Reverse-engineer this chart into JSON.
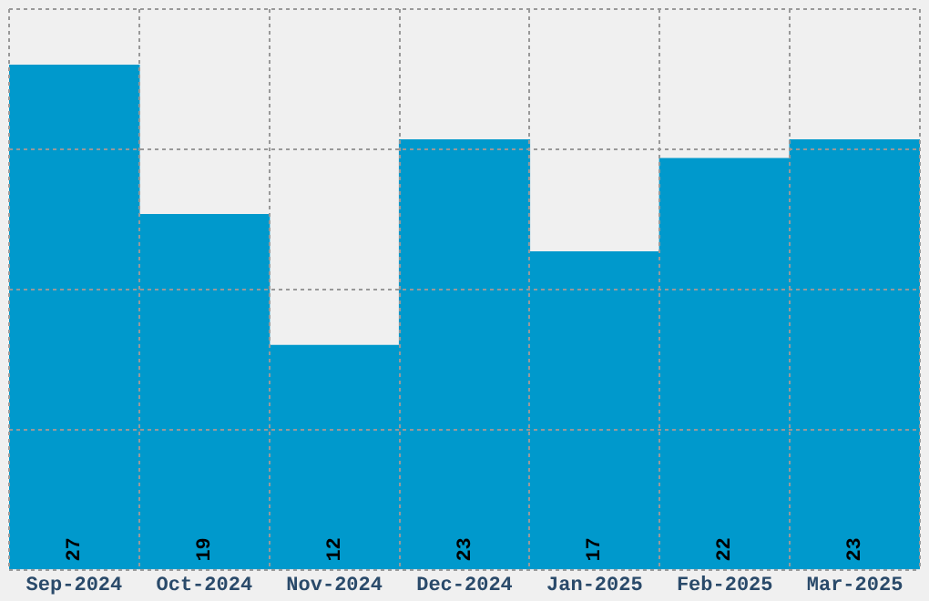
{
  "chart_data": {
    "type": "bar",
    "categories": [
      "Sep-2024",
      "Oct-2024",
      "Nov-2024",
      "Dec-2024",
      "Jan-2025",
      "Feb-2025",
      "Mar-2025"
    ],
    "values": [
      27,
      19,
      12,
      23,
      17,
      22,
      23
    ],
    "color": "#0099cc",
    "ylim": [
      0,
      30
    ],
    "tick_labels": "x",
    "grid": true,
    "data_labels": true
  }
}
